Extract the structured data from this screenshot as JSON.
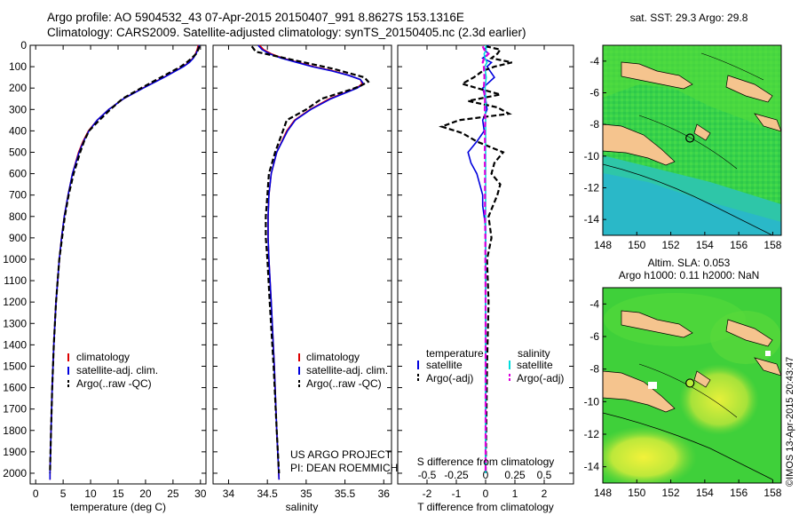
{
  "header": {
    "line1": "Argo profile: AO 5904532_43 07-Apr-2015 20150407_991 8.8627S 153.1316E",
    "line2": "Climatology: CARS2009. Satellite-adjusted climatology: synTS_20150405.nc (2.3d earlier)"
  },
  "credit": {
    "project": "US ARGO PROJECT",
    "pi": "PI: DEAN ROEMMICH",
    "imos": "©IMOS 13-Apr-2015 20:43:47"
  },
  "chart_data": [
    {
      "type": "line",
      "name": "temperature-profile",
      "xlabel": "temperature (deg C)",
      "xlim": [
        -1,
        31
      ],
      "xticks": [
        0,
        5,
        10,
        15,
        20,
        25,
        30
      ],
      "ylim": [
        0,
        2050
      ],
      "yticks": [
        0,
        100,
        200,
        300,
        400,
        500,
        600,
        700,
        800,
        900,
        1000,
        1100,
        1200,
        1300,
        1400,
        1500,
        1600,
        1700,
        1800,
        1900,
        2000
      ],
      "legend": [
        "climatology",
        "satellite-adj. clim.",
        "Argo(..raw -QC)"
      ],
      "series": [
        {
          "name": "climatology",
          "color": "#dd0000",
          "depth": [
            0,
            20,
            40,
            60,
            80,
            100,
            150,
            200,
            250,
            300,
            350,
            400,
            450,
            500,
            600,
            700,
            800,
            900,
            1000,
            1200,
            1400,
            1600,
            1800,
            2000,
            2030
          ],
          "values": [
            29.6,
            29.4,
            29.1,
            28.6,
            27.9,
            26.8,
            23.3,
            19.5,
            16.0,
            13.3,
            11.2,
            9.6,
            8.6,
            7.8,
            6.7,
            5.9,
            5.2,
            4.7,
            4.3,
            3.7,
            3.3,
            3.0,
            2.8,
            2.6,
            2.6
          ]
        },
        {
          "name": "satellite-adj. clim.",
          "color": "#0000dd",
          "depth": [
            0,
            20,
            40,
            60,
            80,
            100,
            150,
            200,
            250,
            300,
            350,
            400,
            450,
            500,
            600,
            700,
            800,
            900,
            1000,
            1200,
            1400,
            1600,
            1800,
            2000,
            2030
          ],
          "values": [
            29.8,
            29.5,
            29.2,
            28.7,
            28.0,
            26.9,
            23.4,
            19.6,
            16.0,
            13.3,
            11.2,
            9.7,
            8.7,
            7.9,
            6.7,
            5.9,
            5.2,
            4.7,
            4.3,
            3.7,
            3.3,
            3.0,
            2.8,
            2.6,
            2.6
          ]
        },
        {
          "name": "Argo(..raw -QC)",
          "color": "#000000",
          "dash": true,
          "depth": [
            5,
            20,
            40,
            60,
            80,
            100,
            150,
            200,
            250,
            300,
            350,
            400,
            450,
            500,
            600,
            700,
            800,
            900,
            1000,
            1200,
            1400,
            1600,
            1800,
            2000
          ],
          "values": [
            29.8,
            29.6,
            29.2,
            28.4,
            27.5,
            26.4,
            22.8,
            19.2,
            15.8,
            13.6,
            11.6,
            9.7,
            8.8,
            8.1,
            6.9,
            6.0,
            5.3,
            4.8,
            4.3,
            3.7,
            3.3,
            3.0,
            2.8,
            2.6
          ]
        }
      ]
    },
    {
      "type": "line",
      "name": "salinity-profile",
      "xlabel": "salinity",
      "xlim": [
        33.8,
        36.1
      ],
      "xticks": [
        34,
        34.5,
        35,
        35.5,
        36
      ],
      "xticklabels": [
        "34",
        "34.5",
        "35",
        "35.5",
        "36"
      ],
      "ylim": [
        0,
        2050
      ],
      "legend": [
        "climatology",
        "satellite-adj. clim.",
        "Argo(..raw -QC)"
      ],
      "series": [
        {
          "name": "climatology",
          "color": "#dd0000",
          "depth": [
            0,
            20,
            40,
            60,
            80,
            100,
            120,
            140,
            160,
            180,
            200,
            250,
            300,
            350,
            400,
            500,
            600,
            700,
            800,
            900,
            1000,
            1200,
            1500,
            1800,
            2030
          ],
          "values": [
            34.4,
            34.45,
            34.55,
            34.7,
            34.9,
            35.1,
            35.35,
            35.55,
            35.7,
            35.72,
            35.65,
            35.3,
            35.05,
            34.85,
            34.75,
            34.62,
            34.55,
            34.52,
            34.51,
            34.51,
            34.52,
            34.55,
            34.59,
            34.62,
            34.65
          ]
        },
        {
          "name": "satellite-adj. clim.",
          "color": "#0000dd",
          "depth": [
            0,
            20,
            40,
            60,
            80,
            100,
            120,
            140,
            160,
            180,
            200,
            250,
            300,
            350,
            400,
            500,
            600,
            700,
            800,
            900,
            1000,
            1200,
            1500,
            1800,
            2030
          ],
          "values": [
            34.38,
            34.43,
            34.53,
            34.68,
            34.88,
            35.08,
            35.33,
            35.54,
            35.7,
            35.74,
            35.66,
            35.32,
            35.06,
            34.86,
            34.76,
            34.62,
            34.55,
            34.52,
            34.51,
            34.51,
            34.52,
            34.55,
            34.59,
            34.62,
            34.65
          ]
        },
        {
          "name": "Argo(..raw -QC)",
          "color": "#000000",
          "dash": true,
          "depth": [
            5,
            30,
            50,
            70,
            90,
            110,
            130,
            150,
            170,
            190,
            210,
            250,
            300,
            350,
            400,
            500,
            600,
            700,
            800,
            900,
            1000,
            1200,
            1500,
            1800,
            2000
          ],
          "values": [
            34.3,
            34.35,
            34.6,
            34.85,
            35.1,
            35.35,
            35.55,
            35.75,
            35.8,
            35.7,
            35.55,
            35.2,
            35.0,
            34.75,
            34.7,
            34.6,
            34.52,
            34.5,
            34.48,
            34.48,
            34.5,
            34.53,
            34.58,
            34.62,
            34.65
          ]
        }
      ]
    },
    {
      "type": "line",
      "name": "difference-profile",
      "xlabel": "T difference from climatology",
      "xlim": [
        -3,
        3
      ],
      "xticks": [
        -2,
        -1,
        0,
        1,
        2
      ],
      "top_axis_label": "S difference from climatology",
      "top_ticks": [
        -0.5,
        -0.25,
        0,
        0.25,
        0.5
      ],
      "top_ticklabels": [
        "-0.5",
        "-0.25",
        "0",
        "0.25",
        "0.5"
      ],
      "ylim": [
        0,
        2050
      ],
      "legend_titles": [
        "temperature",
        "salinity"
      ],
      "legend": [
        "satellite",
        "Argo(-adj)",
        "satellite",
        "Argo(-adj)"
      ],
      "series": [
        {
          "name": "temperature satellite",
          "color": "#0000dd",
          "depth": [
            0,
            20,
            40,
            60,
            80,
            100,
            150,
            200,
            250,
            300,
            350,
            400,
            450,
            500,
            550,
            600,
            650,
            700,
            750,
            800,
            850,
            900,
            1000,
            1200,
            1500,
            1800,
            2000
          ],
          "values": [
            0.1,
            -0.05,
            0.1,
            -0.1,
            0.2,
            0.05,
            0.3,
            -0.1,
            0.0,
            0.05,
            -0.1,
            -0.05,
            -0.3,
            -0.6,
            -0.5,
            -0.3,
            -0.2,
            -0.1,
            -0.1,
            -0.05,
            0.0,
            0.0,
            0.0,
            0.0,
            0.0,
            0.0,
            0.0
          ]
        },
        {
          "name": "temperature Argo(-adj)",
          "color": "#000000",
          "dash": true,
          "depth": [
            5,
            20,
            40,
            60,
            80,
            100,
            120,
            150,
            180,
            200,
            230,
            260,
            290,
            320,
            350,
            380,
            410,
            450,
            500,
            550,
            600,
            650,
            700,
            800,
            900,
            1000,
            1200,
            1500,
            1800,
            2000
          ],
          "values": [
            0.0,
            0.5,
            0.4,
            0.2,
            0.9,
            0.3,
            -0.1,
            -0.4,
            -0.8,
            -0.3,
            0.5,
            -0.6,
            0.4,
            0.8,
            -0.9,
            -1.5,
            -0.8,
            -0.3,
            0.6,
            0.3,
            0.2,
            0.5,
            0.4,
            0.1,
            0.2,
            0.05,
            0.1,
            0.05,
            0.02,
            0.0
          ]
        },
        {
          "name": "salinity satellite",
          "color": "#00dddd",
          "depth": [
            0,
            20,
            40,
            60,
            80,
            100,
            150,
            200,
            250,
            300,
            350,
            400,
            500,
            600,
            700,
            800,
            900,
            1000,
            1200,
            1500,
            1800,
            2000
          ],
          "values": [
            0.0,
            0.02,
            -0.05,
            -0.02,
            0.05,
            -0.03,
            0.02,
            -0.02,
            0.01,
            -0.01,
            0.0,
            0.0,
            0.0,
            0.0,
            0.0,
            0.0,
            0.0,
            0.0,
            0.0,
            0.0,
            0.0,
            0.0
          ]
        },
        {
          "name": "salinity Argo(-adj)",
          "color": "#dd00dd",
          "dash": true,
          "depth": [
            5,
            20,
            40,
            60,
            80,
            100,
            150,
            200,
            250,
            300,
            350,
            400,
            450,
            500,
            600,
            700,
            800,
            900,
            1000,
            1200,
            1500,
            1800,
            2000
          ],
          "values": [
            -0.1,
            -0.05,
            0.1,
            -0.05,
            -0.1,
            -0.06,
            -0.04,
            -0.06,
            -0.02,
            -0.03,
            -0.01,
            -0.03,
            -0.02,
            -0.03,
            -0.02,
            -0.02,
            -0.02,
            -0.01,
            -0.01,
            0.0,
            0.0,
            0.0,
            0.0
          ]
        }
      ]
    },
    {
      "type": "heatmap",
      "name": "sst-map",
      "title": "sat. SST: 29.3 Argo: 29.8",
      "xlim": [
        148,
        158.5
      ],
      "ylim": [
        -15,
        -3
      ],
      "xticks": [
        148,
        150,
        152,
        154,
        156,
        158
      ],
      "yticks": [
        -4,
        -6,
        -8,
        -10,
        -12,
        -14
      ],
      "argo_position": {
        "lon": 153.13,
        "lat": -8.86
      }
    },
    {
      "type": "heatmap",
      "name": "sla-map",
      "title": "Altim. SLA: 0.053",
      "subtitle": "Argo h1000: 0.11 h2000: NaN",
      "xlim": [
        148,
        158.5
      ],
      "ylim": [
        -15,
        -3
      ],
      "xticks": [
        148,
        150,
        152,
        154,
        156,
        158
      ],
      "yticks": [
        -4,
        -6,
        -8,
        -10,
        -12,
        -14
      ],
      "argo_position": {
        "lon": 153.13,
        "lat": -8.86
      }
    }
  ]
}
